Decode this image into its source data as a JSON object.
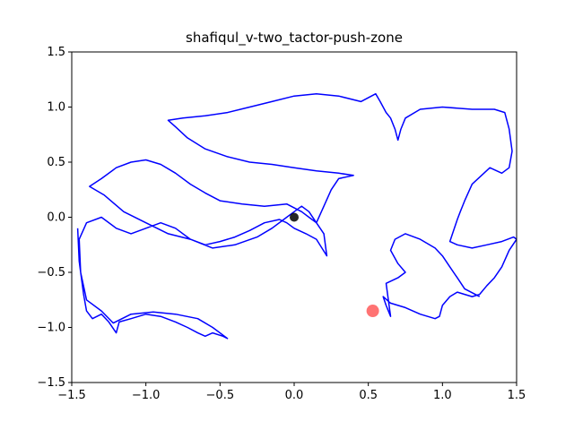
{
  "chart_data": {
    "type": "line",
    "title": "shafiqul_v-two_tactor-push-zone",
    "xlim": [
      -1.5,
      1.5
    ],
    "ylim": [
      -1.5,
      1.5
    ],
    "xticks": [
      -1.5,
      -1.0,
      -0.5,
      0.0,
      0.5,
      1.0,
      1.5
    ],
    "yticks": [
      -1.5,
      -1.0,
      -0.5,
      0.0,
      0.5,
      1.0,
      1.5
    ],
    "xtick_labels": [
      "−1.5",
      "−1.0",
      "−0.5",
      "0.0",
      "0.5",
      "1.0",
      "1.5"
    ],
    "ytick_labels": [
      "−1.5",
      "−1.0",
      "−0.5",
      "0.0",
      "0.5",
      "1.0",
      "1.5"
    ],
    "grid": false,
    "line_color": "#0000ff",
    "path": [
      [
        -1.46,
        -0.1
      ],
      [
        -1.45,
        -0.4
      ],
      [
        -1.42,
        -0.7
      ],
      [
        -1.4,
        -0.85
      ],
      [
        -1.36,
        -0.92
      ],
      [
        -1.3,
        -0.88
      ],
      [
        -1.25,
        -0.95
      ],
      [
        -1.2,
        -1.05
      ],
      [
        -1.18,
        -0.95
      ],
      [
        -1.1,
        -0.92
      ],
      [
        -1.0,
        -0.88
      ],
      [
        -0.9,
        -0.9
      ],
      [
        -0.8,
        -0.95
      ],
      [
        -0.72,
        -1.0
      ],
      [
        -0.65,
        -1.05
      ],
      [
        -0.6,
        -1.08
      ],
      [
        -0.55,
        -1.05
      ],
      [
        -0.48,
        -1.08
      ],
      [
        -0.45,
        -1.1
      ],
      [
        -0.55,
        -1.0
      ],
      [
        -0.65,
        -0.92
      ],
      [
        -0.8,
        -0.88
      ],
      [
        -0.95,
        -0.86
      ],
      [
        -1.1,
        -0.88
      ],
      [
        -1.22,
        -0.96
      ],
      [
        -1.3,
        -0.85
      ],
      [
        -1.4,
        -0.75
      ],
      [
        -1.44,
        -0.5
      ],
      [
        -1.45,
        -0.2
      ],
      [
        -1.4,
        -0.05
      ],
      [
        -1.3,
        0.0
      ],
      [
        -1.2,
        -0.1
      ],
      [
        -1.1,
        -0.15
      ],
      [
        -1.0,
        -0.1
      ],
      [
        -0.9,
        -0.05
      ],
      [
        -0.8,
        -0.1
      ],
      [
        -0.7,
        -0.2
      ],
      [
        -0.6,
        -0.25
      ],
      [
        -0.5,
        -0.22
      ],
      [
        -0.4,
        -0.18
      ],
      [
        -0.3,
        -0.12
      ],
      [
        -0.2,
        -0.05
      ],
      [
        -0.1,
        -0.02
      ],
      [
        -0.05,
        -0.05
      ],
      [
        0.0,
        -0.1
      ],
      [
        0.08,
        -0.15
      ],
      [
        0.15,
        -0.2
      ],
      [
        0.22,
        -0.35
      ],
      [
        0.2,
        -0.15
      ],
      [
        0.15,
        -0.05
      ],
      [
        0.1,
        0.05
      ],
      [
        0.05,
        0.1
      ],
      [
        0.0,
        0.05
      ],
      [
        -0.05,
        0.0
      ],
      [
        -0.15,
        -0.1
      ],
      [
        -0.25,
        -0.18
      ],
      [
        -0.4,
        -0.25
      ],
      [
        -0.55,
        -0.28
      ],
      [
        -0.7,
        -0.2
      ],
      [
        -0.85,
        -0.15
      ],
      [
        -1.0,
        -0.05
      ],
      [
        -1.15,
        0.05
      ],
      [
        -1.28,
        0.2
      ],
      [
        -1.38,
        0.28
      ],
      [
        -1.3,
        0.35
      ],
      [
        -1.2,
        0.45
      ],
      [
        -1.1,
        0.5
      ],
      [
        -1.0,
        0.52
      ],
      [
        -0.9,
        0.48
      ],
      [
        -0.8,
        0.4
      ],
      [
        -0.7,
        0.3
      ],
      [
        -0.6,
        0.22
      ],
      [
        -0.5,
        0.15
      ],
      [
        -0.35,
        0.12
      ],
      [
        -0.2,
        0.1
      ],
      [
        -0.05,
        0.12
      ],
      [
        0.05,
        0.05
      ],
      [
        0.1,
        0.0
      ],
      [
        0.15,
        -0.05
      ],
      [
        0.2,
        0.1
      ],
      [
        0.25,
        0.25
      ],
      [
        0.3,
        0.35
      ],
      [
        0.4,
        0.38
      ],
      [
        0.3,
        0.4
      ],
      [
        0.15,
        0.42
      ],
      [
        0.0,
        0.45
      ],
      [
        -0.15,
        0.48
      ],
      [
        -0.3,
        0.5
      ],
      [
        -0.45,
        0.55
      ],
      [
        -0.6,
        0.62
      ],
      [
        -0.72,
        0.72
      ],
      [
        -0.8,
        0.82
      ],
      [
        -0.85,
        0.88
      ],
      [
        -0.75,
        0.9
      ],
      [
        -0.6,
        0.92
      ],
      [
        -0.45,
        0.95
      ],
      [
        -0.3,
        1.0
      ],
      [
        -0.15,
        1.05
      ],
      [
        0.0,
        1.1
      ],
      [
        0.15,
        1.12
      ],
      [
        0.3,
        1.1
      ],
      [
        0.45,
        1.05
      ],
      [
        0.55,
        1.12
      ],
      [
        0.58,
        1.05
      ],
      [
        0.62,
        0.95
      ],
      [
        0.65,
        0.9
      ],
      [
        0.68,
        0.8
      ],
      [
        0.7,
        0.7
      ],
      [
        0.72,
        0.8
      ],
      [
        0.75,
        0.9
      ],
      [
        0.85,
        0.98
      ],
      [
        1.0,
        1.0
      ],
      [
        1.2,
        0.98
      ],
      [
        1.35,
        0.98
      ],
      [
        1.42,
        0.95
      ],
      [
        1.45,
        0.8
      ],
      [
        1.47,
        0.6
      ],
      [
        1.45,
        0.45
      ],
      [
        1.4,
        0.4
      ],
      [
        1.32,
        0.45
      ],
      [
        1.28,
        0.4
      ],
      [
        1.2,
        0.3
      ],
      [
        1.15,
        0.15
      ],
      [
        1.12,
        0.05
      ],
      [
        1.1,
        -0.02
      ],
      [
        1.08,
        -0.1
      ],
      [
        1.05,
        -0.22
      ],
      [
        1.1,
        -0.25
      ],
      [
        1.2,
        -0.28
      ],
      [
        1.3,
        -0.25
      ],
      [
        1.4,
        -0.22
      ],
      [
        1.48,
        -0.18
      ],
      [
        1.5,
        -0.2
      ],
      [
        1.45,
        -0.3
      ],
      [
        1.4,
        -0.45
      ],
      [
        1.35,
        -0.55
      ],
      [
        1.3,
        -0.62
      ],
      [
        1.25,
        -0.7
      ],
      [
        1.2,
        -0.72
      ],
      [
        1.15,
        -0.7
      ],
      [
        1.1,
        -0.68
      ],
      [
        1.05,
        -0.72
      ],
      [
        1.0,
        -0.8
      ],
      [
        0.98,
        -0.9
      ],
      [
        0.95,
        -0.92
      ],
      [
        0.85,
        -0.88
      ],
      [
        0.75,
        -0.82
      ],
      [
        0.65,
        -0.78
      ],
      [
        0.6,
        -0.72
      ],
      [
        0.62,
        -0.8
      ],
      [
        0.65,
        -0.9
      ],
      [
        0.62,
        -0.6
      ],
      [
        0.7,
        -0.55
      ],
      [
        0.75,
        -0.5
      ],
      [
        0.7,
        -0.42
      ],
      [
        0.65,
        -0.3
      ],
      [
        0.68,
        -0.2
      ],
      [
        0.75,
        -0.15
      ],
      [
        0.85,
        -0.2
      ],
      [
        0.95,
        -0.28
      ],
      [
        1.0,
        -0.35
      ],
      [
        1.05,
        -0.45
      ],
      [
        1.1,
        -0.55
      ],
      [
        1.15,
        -0.65
      ],
      [
        1.25,
        -0.72
      ]
    ],
    "markers": [
      {
        "x": 0.0,
        "y": 0.0,
        "color": "#000000",
        "size": 5
      },
      {
        "x": 0.53,
        "y": -0.85,
        "color": "#ff0000",
        "size": 7
      }
    ]
  }
}
